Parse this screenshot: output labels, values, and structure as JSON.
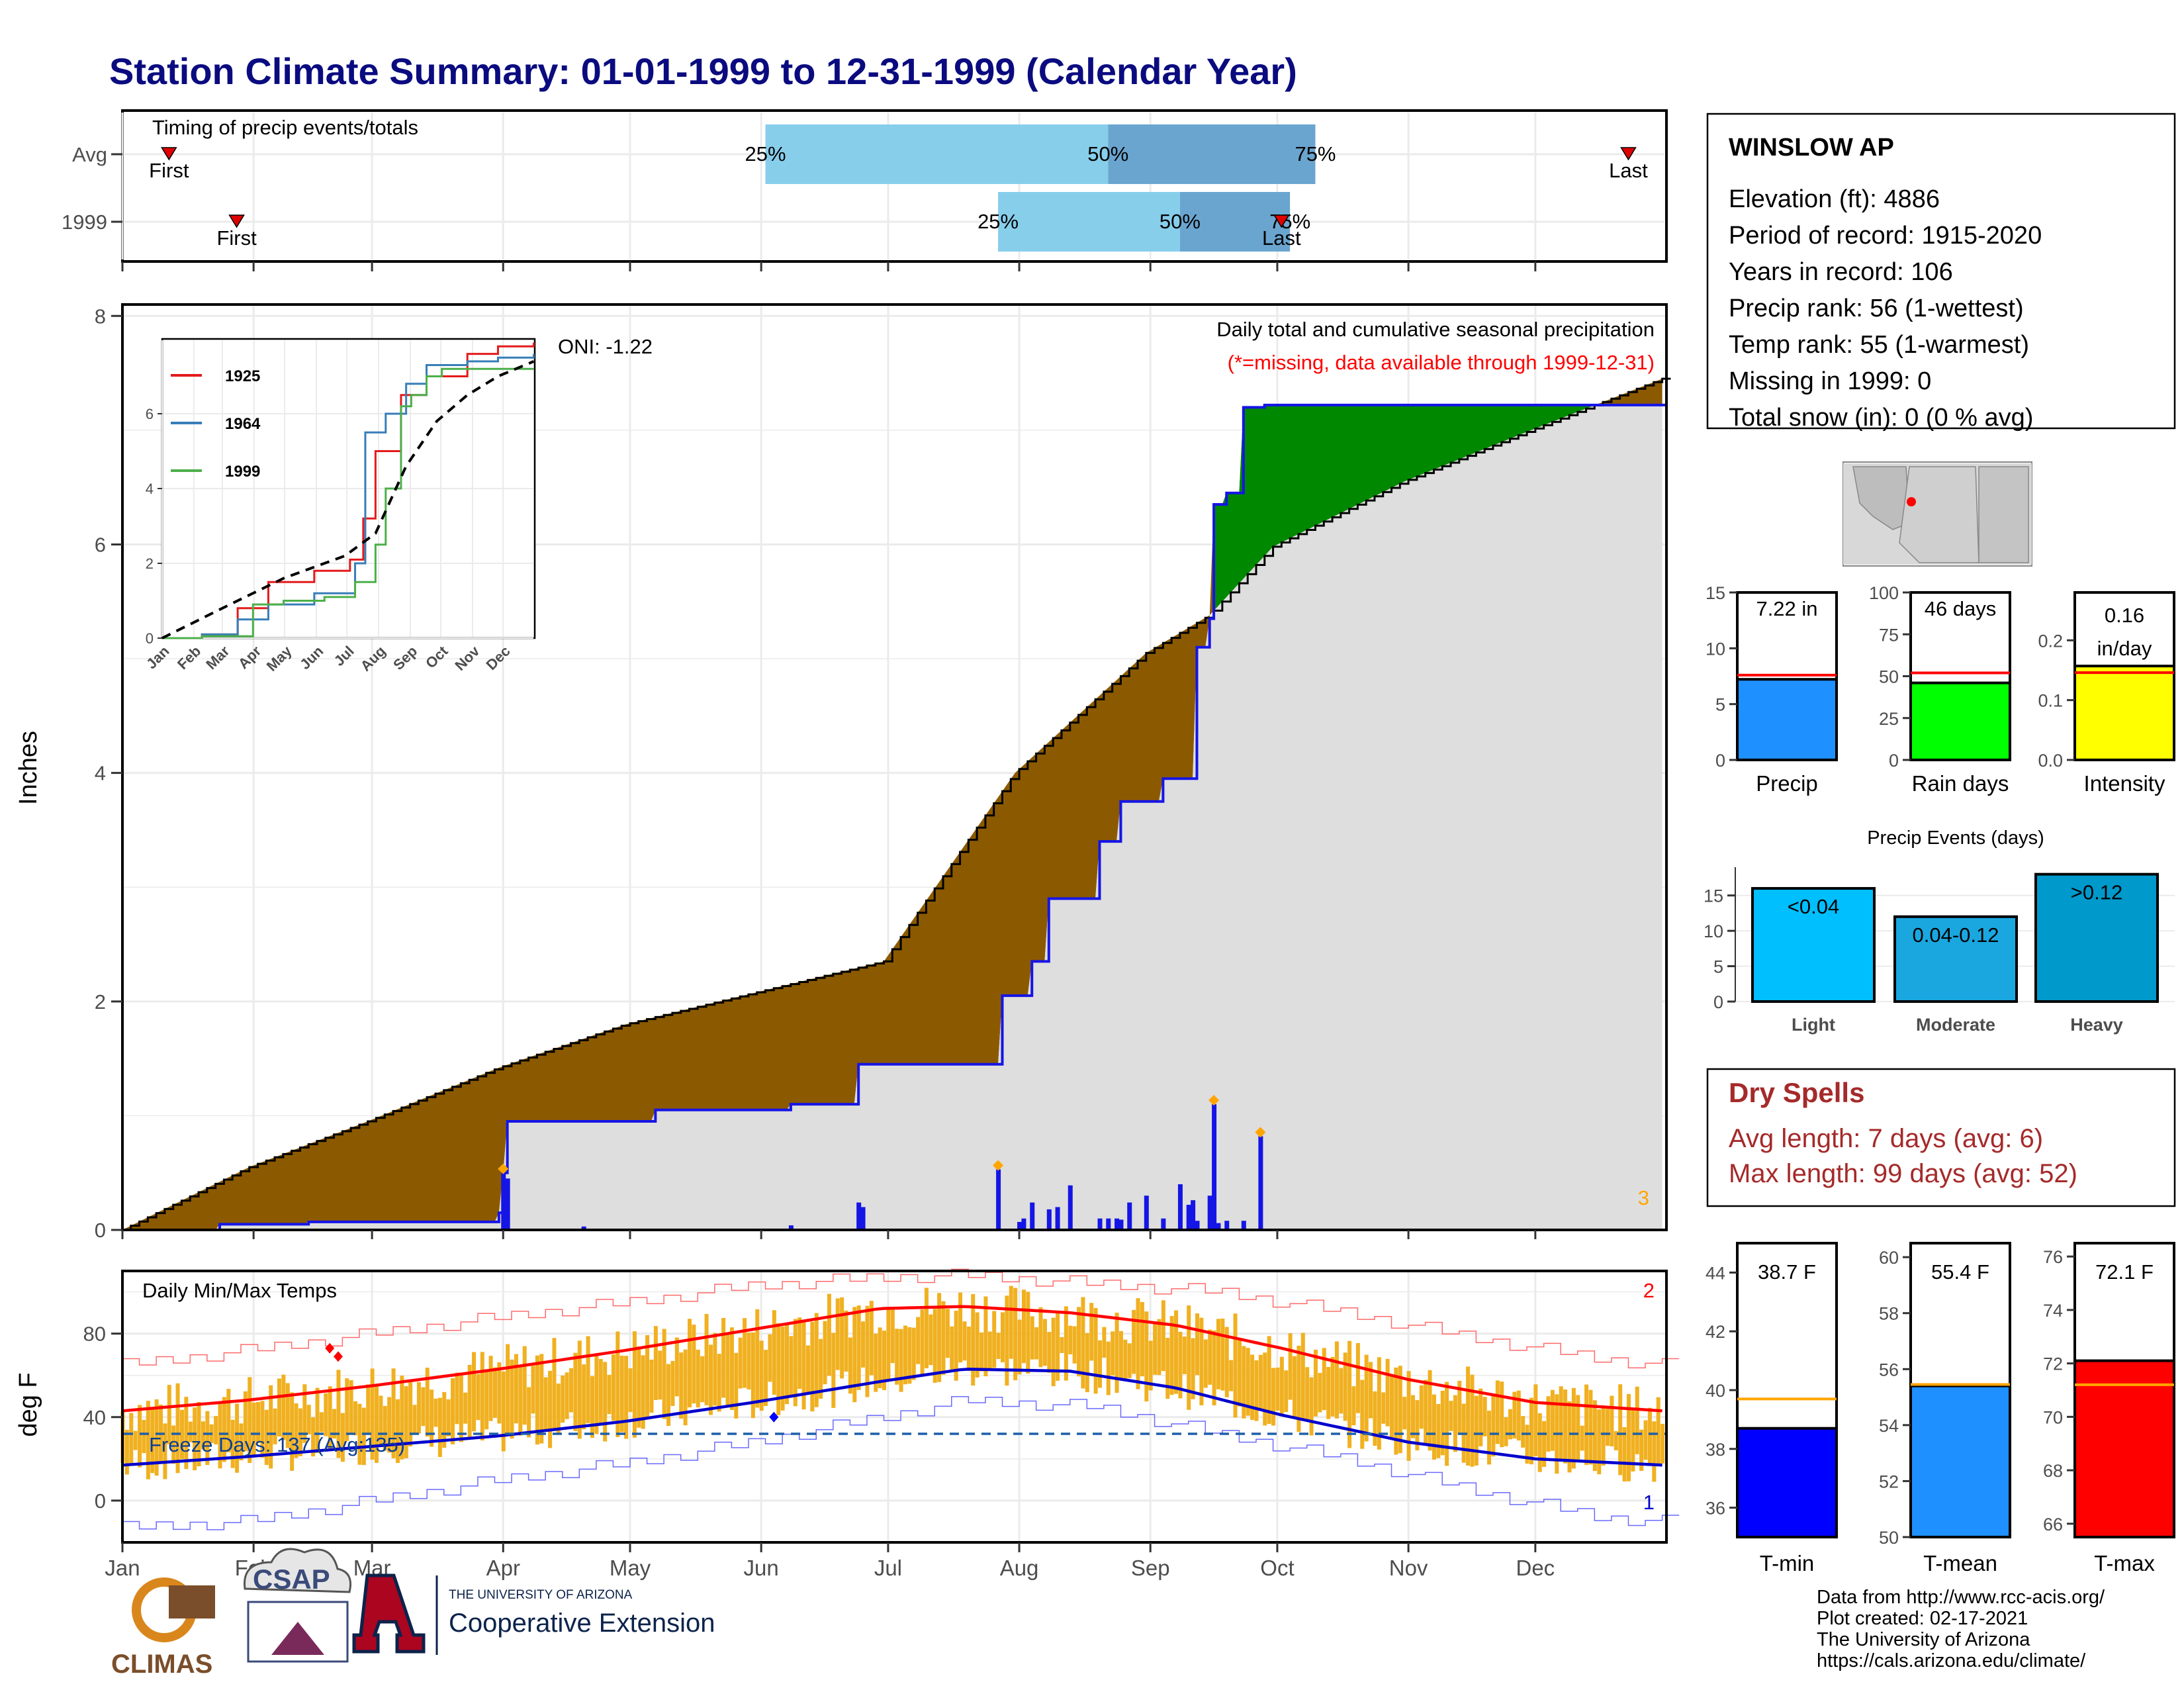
{
  "title": "Station Climate Summary: 01-01-1999 to 12-31-1999 (Calendar Year)",
  "colors": {
    "title": "#0b0b80",
    "avg_cum": "#8b5a00",
    "year_wet": "#008800",
    "year_line": "#1515e6",
    "climo_fill": "#dedede",
    "tmax_avg": "#ff0000",
    "tmin_avg": "#0000cc",
    "temp_bar": "#f0b020",
    "light_blue": "#87ceeb",
    "mid_blue": "#6aa5cf",
    "dry_spell": "#a52a2a"
  },
  "timing": {
    "title": "Timing of precip events/totals",
    "rows": [
      {
        "label": "Avg",
        "first": "First",
        "last": "Last",
        "first_doy": 12,
        "last_doy": 357,
        "q25_label": "25%",
        "q50_label": "50%",
        "q75_label": "75%",
        "q25_doy": 153,
        "q50_doy": 234,
        "q75_doy": 283
      },
      {
        "label": "1999",
        "first": "First",
        "last": "Last",
        "first_doy": 28,
        "last_doy": 275,
        "q25_label": "25%",
        "q50_label": "50%",
        "q75_label": "75%",
        "q25_doy": 208,
        "q50_doy": 251,
        "q75_doy": 277
      }
    ]
  },
  "station": {
    "name": "WINSLOW AP",
    "lines": [
      "Elevation (ft): 4886",
      "Period of record: 1915-2020",
      "Years in record: 106",
      "Precip rank: 56 (1-wettest)",
      "Temp rank: 55 (1-warmest)",
      "Missing in 1999: 0",
      "Total snow (in): 0 (0 % avg)"
    ]
  },
  "precip_panel": {
    "ylabel": "Inches",
    "yticks": [
      "0",
      "2",
      "4",
      "6",
      "8"
    ],
    "oni": "ONI: -1.22",
    "label1": "Daily total and cumulative seasonal precipitation",
    "label2": "(*=missing, data available through 1999-12-31)",
    "corner_num": "3"
  },
  "months": [
    "Jan",
    "Feb",
    "Mar",
    "Apr",
    "May",
    "Jun",
    "Jul",
    "Aug",
    "Sep",
    "Oct",
    "Nov",
    "Dec"
  ],
  "inset": {
    "yticks": [
      "0",
      "2",
      "4",
      "6"
    ],
    "legend": [
      "1925",
      "1964",
      "1999"
    ],
    "legend_colors": [
      "#e41a1c",
      "#377eb8",
      "#4daf4a"
    ]
  },
  "temp_panel": {
    "ylabel": "deg F",
    "title": "Daily Min/Max Temps",
    "yticks": [
      "0",
      "40",
      "80"
    ],
    "freeze": "Freeze Days: 137 (Avg:135)",
    "corner_top": "2",
    "corner_bottom": "1"
  },
  "summary_bars": [
    {
      "name": "Precip",
      "value_label": "7.22 in",
      "value": 7.22,
      "avg": 7.6,
      "ymax": 15,
      "ticks": [
        "0",
        "5",
        "10",
        "15"
      ],
      "tick_vals": [
        0,
        5,
        10,
        15
      ],
      "color": "#1e90ff"
    },
    {
      "name": "Rain days",
      "value_label": "46 days",
      "value": 46,
      "avg": 52,
      "ymax": 100,
      "ticks": [
        "0",
        "25",
        "50",
        "75",
        "100"
      ],
      "tick_vals": [
        0,
        25,
        50,
        75,
        100
      ],
      "color": "#00ff00"
    },
    {
      "name": "Intensity",
      "value_label": "0.16",
      "value_label2": "in/day",
      "value": 0.157,
      "avg": 0.146,
      "ymax": 0.28,
      "ticks": [
        "0.0",
        "0.1",
        "0.2"
      ],
      "tick_vals": [
        0,
        0.1,
        0.2
      ],
      "color": "#ffff00"
    }
  ],
  "events": {
    "title": "Precip Events (days)",
    "yticks": [
      "0",
      "5",
      "10",
      "15"
    ],
    "bars": [
      {
        "name": "Light",
        "label": "<0.04",
        "value": 16,
        "color": "#00bfff"
      },
      {
        "name": "Moderate",
        "label": "0.04-0.12",
        "value": 12,
        "color": "#1aa7e0"
      },
      {
        "name": "Heavy",
        "label": ">0.12",
        "value": 18,
        "color": "#0099cc"
      }
    ]
  },
  "dry_spells": {
    "title": "Dry Spells",
    "avg": "Avg length: 7 days (avg: 6)",
    "max": "Max length: 99 days (avg: 52)"
  },
  "temp_bars": [
    {
      "name": "T-min",
      "value_label": "38.7 F",
      "value": 38.7,
      "avg": 39.7,
      "ymin": 35,
      "ymax": 45,
      "ticks": [
        "36",
        "38",
        "40",
        "42",
        "44"
      ],
      "tick_vals": [
        36,
        38,
        40,
        42,
        44
      ],
      "color": "#0000ff"
    },
    {
      "name": "T-mean",
      "value_label": "55.4 F",
      "value": 55.4,
      "avg": 55.45,
      "ymin": 50,
      "ymax": 60.5,
      "ticks": [
        "50",
        "52",
        "54",
        "56",
        "58",
        "60"
      ],
      "tick_vals": [
        50,
        52,
        54,
        56,
        58,
        60
      ],
      "color": "#1e90ff"
    },
    {
      "name": "T-max",
      "value_label": "72.1 F",
      "value": 72.1,
      "avg": 71.2,
      "ymin": 65.5,
      "ymax": 76.5,
      "ticks": [
        "66",
        "68",
        "70",
        "72",
        "74",
        "76"
      ],
      "tick_vals": [
        66,
        68,
        70,
        72,
        74,
        76
      ],
      "color": "#ff0000"
    }
  ],
  "footer": {
    "lines": [
      "Data from http://www.rcc-acis.org/",
      "Plot created: 02-17-2021",
      "The University of Arizona",
      "https://cals.arizona.edu/climate/"
    ],
    "logo1": "CLIMAS",
    "logo2": "CSAP",
    "logo3_small": "THE UNIVERSITY OF ARIZONA",
    "logo3_big": "Cooperative Extension"
  },
  "chart_data": [
    {
      "type": "area",
      "title": "Daily total and cumulative seasonal precipitation",
      "ylabel": "Inches",
      "ylim": [
        0,
        8.1
      ],
      "avg_cumulative": {
        "doy": [
          1,
          31,
          59,
          90,
          120,
          151,
          181,
          212,
          243,
          258,
          273,
          304,
          334,
          365
        ],
        "values": [
          0,
          0.55,
          0.95,
          1.42,
          1.8,
          2.08,
          2.35,
          4.0,
          5.05,
          5.38,
          5.98,
          6.55,
          7.0,
          7.45
        ]
      },
      "year_cumulative": {
        "doy": [
          1,
          24,
          45,
          90,
          91,
          92,
          127,
          159,
          175,
          208,
          209,
          216,
          220,
          232,
          237,
          247,
          255,
          258,
          259,
          262,
          266,
          271,
          366
        ],
        "values": [
          0,
          0.05,
          0.07,
          0.15,
          0.5,
          0.95,
          1.05,
          1.1,
          1.45,
          1.45,
          2.05,
          2.35,
          2.9,
          3.4,
          3.75,
          3.95,
          5.1,
          5.35,
          6.35,
          6.45,
          7.2,
          7.22,
          7.22
        ]
      },
      "daily_bars": {
        "doy": [
          91,
          92,
          110,
          159,
          175,
          176,
          208,
          213,
          214,
          216,
          220,
          222,
          225,
          232,
          234,
          236,
          237,
          239,
          243,
          247,
          251,
          253,
          254,
          255,
          258,
          259,
          260,
          262,
          266,
          270
        ],
        "values": [
          0.5,
          0.45,
          0.03,
          0.04,
          0.24,
          0.2,
          0.53,
          0.07,
          0.1,
          0.24,
          0.18,
          0.2,
          0.39,
          0.1,
          0.1,
          0.1,
          0.09,
          0.24,
          0.3,
          0.1,
          0.4,
          0.22,
          0.26,
          0.08,
          0.3,
          1.1,
          0.06,
          0.08,
          0.08,
          0.82
        ]
      },
      "inset": {
        "series": [
          {
            "name": "1925",
            "doy": [
              1,
              40,
              75,
              105,
              150,
              185,
              198,
              210,
              235,
              260,
              300,
              330,
              365
            ],
            "values": [
              0,
              0.1,
              0.8,
              1.5,
              1.8,
              2.1,
              3.2,
              5.0,
              6.5,
              7.0,
              7.6,
              7.8,
              7.9
            ]
          },
          {
            "name": "1964",
            "doy": [
              1,
              40,
              75,
              105,
              150,
              190,
              200,
              220,
              240,
              260,
              300,
              330,
              365
            ],
            "values": [
              0,
              0.1,
              0.5,
              0.9,
              1.2,
              2.0,
              5.5,
              6.0,
              6.8,
              7.3,
              7.4,
              7.5,
              7.6
            ]
          },
          {
            "name": "1999",
            "doy": [
              1,
              40,
              90,
              120,
              160,
              190,
              210,
              220,
              235,
              245,
              260,
              275,
              300,
              365
            ],
            "values": [
              0,
              0.05,
              0.9,
              1.0,
              1.1,
              1.5,
              2.5,
              4.0,
              6.2,
              6.5,
              7.0,
              7.2,
              7.2,
              7.2
            ]
          },
          {
            "name": "avg",
            "doy": [
              1,
              60,
              120,
              180,
              210,
              240,
              270,
              300,
              330,
              365
            ],
            "values": [
              0,
              0.8,
              1.6,
              2.2,
              2.8,
              4.6,
              5.8,
              6.5,
              7.0,
              7.4
            ]
          }
        ]
      }
    },
    {
      "type": "line",
      "title": "Daily Min/Max Temps",
      "ylabel": "deg F",
      "ylim": [
        -20,
        110
      ],
      "tmax_avg": {
        "doy": [
          1,
          30,
          60,
          90,
          120,
          150,
          180,
          200,
          225,
          250,
          275,
          305,
          335,
          365
        ],
        "values": [
          43,
          48,
          55,
          63,
          72,
          82,
          92,
          93,
          90,
          84,
          73,
          58,
          47,
          43
        ]
      },
      "tmin_avg": {
        "doy": [
          1,
          30,
          60,
          90,
          120,
          150,
          180,
          200,
          225,
          250,
          275,
          305,
          335,
          365
        ],
        "values": [
          17,
          21,
          26,
          31,
          38,
          47,
          57,
          63,
          62,
          54,
          41,
          28,
          20,
          17
        ]
      },
      "freeze_line": 32,
      "record_high": {
        "doy": [
          1,
          30,
          60,
          90,
          120,
          150,
          180,
          200,
          230,
          260,
          290,
          320,
          350,
          365
        ],
        "values": [
          65,
          72,
          80,
          88,
          95,
          103,
          107,
          108,
          104,
          100,
          90,
          78,
          68,
          65
        ]
      },
      "record_low": {
        "doy": [
          1,
          30,
          60,
          90,
          120,
          150,
          180,
          200,
          230,
          260,
          290,
          320,
          350,
          365
        ],
        "values": [
          -13,
          -10,
          0,
          10,
          18,
          28,
          40,
          48,
          45,
          32,
          20,
          5,
          -8,
          -10
        ]
      }
    }
  ]
}
